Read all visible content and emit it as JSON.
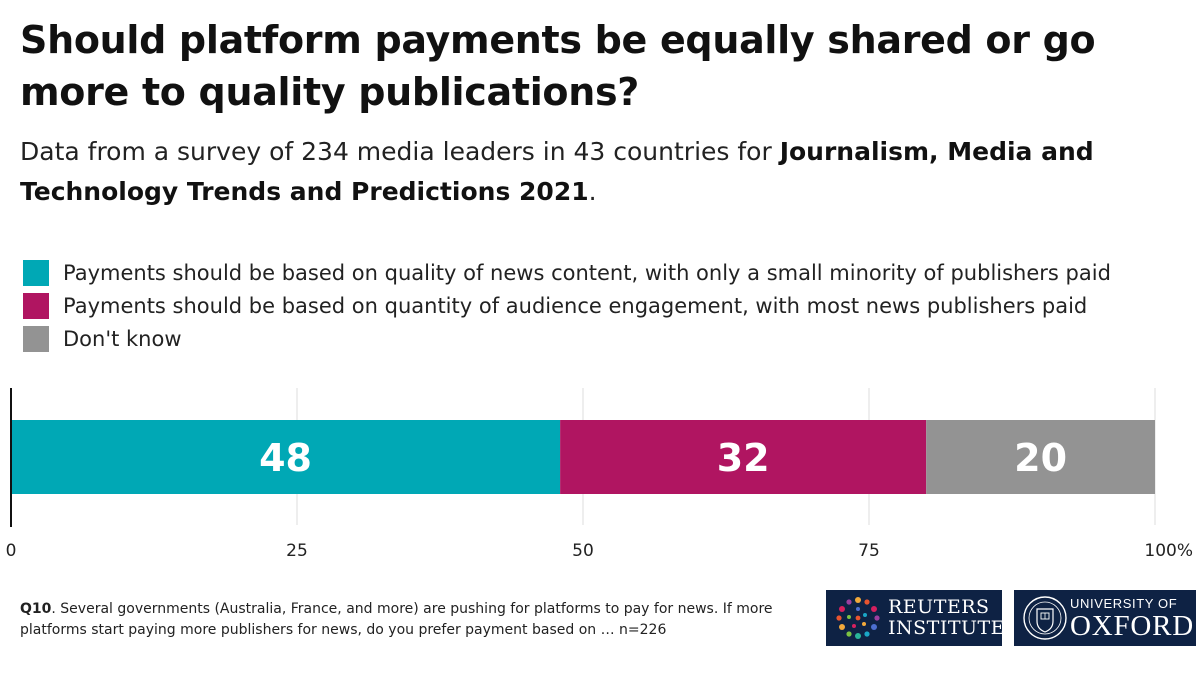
{
  "title": "Should platform payments be equally shared or go more to quality publications?",
  "subtitle": {
    "plain": "Data from a survey of 234 media leaders in 43 countries for ",
    "bold": "Journalism, Media and Technology Trends and Predictions 2021",
    "end": "."
  },
  "chart_data": {
    "type": "bar",
    "orientation": "horizontal-stacked",
    "categories": [
      ""
    ],
    "series": [
      {
        "name": "Payments should be based on quality of news content, with only a small minority of publishers paid",
        "values": [
          48
        ],
        "color": "#00a8b5"
      },
      {
        "name": "Payments should be based on quantity of audience engagement, with most news publishers paid",
        "values": [
          32
        ],
        "color": "#b01561"
      },
      {
        "name": "Don't know",
        "values": [
          20
        ],
        "color": "#939393"
      }
    ],
    "xlim": [
      0,
      100
    ],
    "xticks": [
      "0",
      "25",
      "50",
      "75",
      "100%"
    ],
    "xtick_values": [
      0,
      25,
      50,
      75,
      100
    ],
    "grid": true,
    "legend_position": "top-left"
  },
  "footnote": {
    "qid": "Q10",
    "text": ". Several governments (Australia, France, and more) are pushing for platforms to pay for news. If more platforms start paying more publishers for news, do you prefer payment based on … n=226"
  },
  "logos": {
    "reuters": [
      "REUTERS",
      "INSTITUTE"
    ],
    "oxford": [
      "UNIVERSITY OF",
      "OXFORD"
    ]
  },
  "colors": {
    "background": "#ffffff",
    "navy": "#0e2244",
    "teal": "#00a8b5",
    "magenta": "#b01561",
    "grey": "#939393"
  },
  "icons": [
    "reuters-dots-logo-icon",
    "oxford-crest-icon"
  ]
}
